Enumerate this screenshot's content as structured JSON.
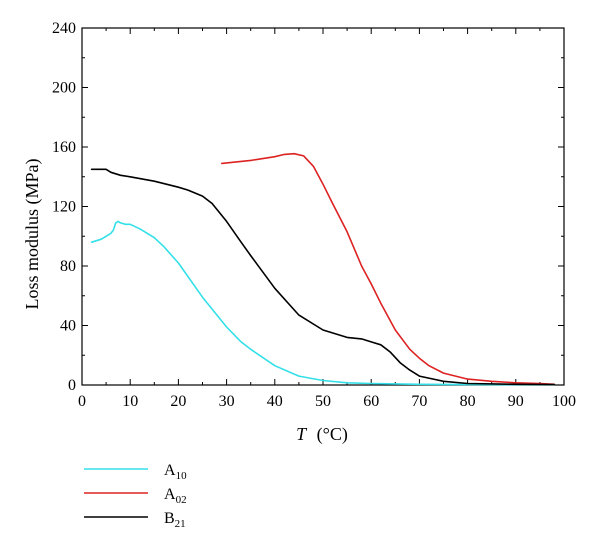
{
  "chart_data": {
    "type": "line",
    "xlabel": {
      "main": "T",
      "unit": "(°C)"
    },
    "ylabel": "Loss modulus (MPa)",
    "xlim": [
      0,
      100
    ],
    "ylim": [
      0,
      240
    ],
    "xticks": [
      0,
      10,
      20,
      30,
      40,
      50,
      60,
      70,
      80,
      90,
      100
    ],
    "yticks": [
      0,
      40,
      80,
      120,
      160,
      200,
      240
    ],
    "grid": false,
    "legend_position": "bottom-left, below plot",
    "series": [
      {
        "name": "A10",
        "label_main": "A",
        "label_sub": "10",
        "color": "#33e0e8",
        "x": [
          2,
          4,
          5,
          6,
          6.5,
          7,
          7.5,
          8,
          9,
          10,
          12,
          15,
          17,
          20,
          25,
          30,
          33,
          35,
          40,
          45,
          50,
          55,
          60,
          70,
          80,
          90,
          98
        ],
        "y": [
          96,
          98,
          100,
          102,
          104,
          109,
          110,
          109,
          108,
          108,
          105,
          99,
          93,
          82,
          59,
          39,
          29,
          24,
          13,
          6,
          3,
          1.5,
          1,
          0.5,
          0.3,
          0.2,
          0.2
        ]
      },
      {
        "name": "A02",
        "label_main": "A",
        "label_sub": "02",
        "color": "#dd2222",
        "x": [
          29,
          32,
          35,
          38,
          40,
          42,
          44,
          46,
          48,
          50,
          52,
          55,
          58,
          60,
          62,
          65,
          68,
          70,
          72,
          75,
          80,
          85,
          90,
          95,
          98
        ],
        "y": [
          149,
          150,
          151,
          152.5,
          153.5,
          155,
          155.5,
          154,
          147,
          135,
          122,
          103,
          80,
          68,
          55,
          37,
          24,
          18,
          13,
          8,
          4,
          2.5,
          1.5,
          1,
          0.5
        ]
      },
      {
        "name": "B21",
        "label_main": "B",
        "label_sub": "21",
        "color": "#000000",
        "x": [
          2,
          5,
          6,
          8,
          10,
          15,
          20,
          22,
          25,
          27,
          30,
          33,
          35,
          40,
          45,
          50,
          55,
          58,
          60,
          62,
          64,
          66,
          68,
          70,
          75,
          80,
          90,
          98
        ],
        "y": [
          145,
          145,
          143,
          141,
          140,
          137,
          133,
          131,
          127,
          122,
          110,
          96,
          87,
          65,
          47,
          37,
          32,
          31,
          29,
          27,
          22,
          15,
          10,
          6,
          2.5,
          1,
          0.5,
          0.3
        ]
      }
    ]
  }
}
